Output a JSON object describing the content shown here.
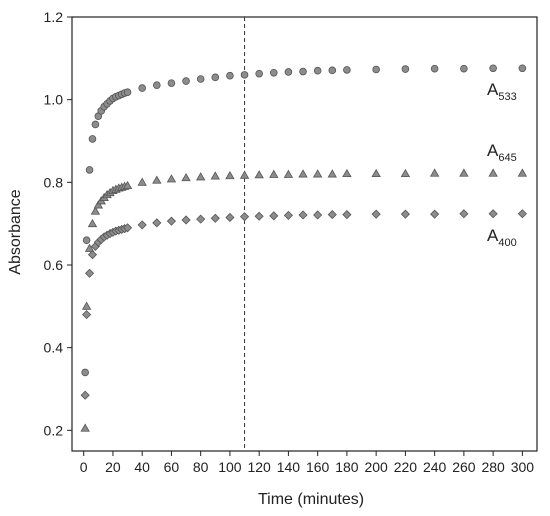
{
  "chart_data": {
    "type": "scatter",
    "xlabel": "Time (minutes)",
    "ylabel": "Absorbance",
    "xlim": [
      -8,
      310
    ],
    "ylim": [
      0.15,
      1.2
    ],
    "xticks": [
      0,
      20,
      40,
      60,
      80,
      100,
      120,
      140,
      160,
      180,
      200,
      220,
      240,
      260,
      280,
      300
    ],
    "yticks": [
      0.2,
      0.4,
      0.6,
      0.8,
      1.0,
      1.2
    ],
    "xtick_labels": [
      "0",
      "20",
      "40",
      "60",
      "80",
      "100",
      "120",
      "140",
      "160",
      "180",
      "200",
      "220",
      "240",
      "260",
      "280",
      "300"
    ],
    "ytick_labels": [
      "0.2",
      "0.4",
      "0.6",
      "0.8",
      "1.0",
      "1.2"
    ],
    "vline_x": 110,
    "grid": false,
    "marker_color": "#8c8c8c",
    "marker_edge": "#555555",
    "series": [
      {
        "name": "A533",
        "label_main": "A",
        "label_sub": "533",
        "marker": "circle",
        "x": [
          1,
          2,
          4,
          6,
          8,
          10,
          12,
          14,
          16,
          18,
          20,
          22,
          24,
          26,
          28,
          30,
          40,
          50,
          60,
          70,
          80,
          90,
          100,
          110,
          120,
          130,
          140,
          150,
          160,
          170,
          180,
          200,
          220,
          240,
          260,
          280,
          300
        ],
        "y": [
          0.34,
          0.66,
          0.83,
          0.905,
          0.94,
          0.96,
          0.973,
          0.983,
          0.99,
          0.997,
          1.003,
          1.007,
          1.01,
          1.013,
          1.016,
          1.018,
          1.028,
          1.035,
          1.04,
          1.045,
          1.05,
          1.054,
          1.058,
          1.06,
          1.063,
          1.065,
          1.067,
          1.068,
          1.07,
          1.071,
          1.072,
          1.073,
          1.074,
          1.075,
          1.075,
          1.076,
          1.076
        ]
      },
      {
        "name": "A645",
        "label_main": "A",
        "label_sub": "645",
        "marker": "triangle",
        "x": [
          1,
          2,
          4,
          6,
          8,
          10,
          12,
          14,
          16,
          18,
          20,
          22,
          24,
          26,
          28,
          30,
          40,
          50,
          60,
          70,
          80,
          90,
          100,
          110,
          120,
          130,
          140,
          150,
          160,
          170,
          180,
          200,
          220,
          240,
          260,
          280,
          300
        ],
        "y": [
          0.205,
          0.5,
          0.64,
          0.7,
          0.73,
          0.745,
          0.755,
          0.763,
          0.77,
          0.775,
          0.78,
          0.783,
          0.786,
          0.788,
          0.79,
          0.792,
          0.8,
          0.805,
          0.808,
          0.811,
          0.813,
          0.815,
          0.816,
          0.817,
          0.818,
          0.819,
          0.819,
          0.82,
          0.82,
          0.82,
          0.821,
          0.821,
          0.821,
          0.822,
          0.822,
          0.822,
          0.822
        ]
      },
      {
        "name": "A400",
        "label_main": "A",
        "label_sub": "400",
        "marker": "diamond",
        "x": [
          1,
          2,
          4,
          6,
          8,
          10,
          12,
          14,
          16,
          18,
          20,
          22,
          24,
          26,
          28,
          30,
          40,
          50,
          60,
          70,
          80,
          90,
          100,
          110,
          120,
          130,
          140,
          150,
          160,
          170,
          180,
          200,
          220,
          240,
          260,
          280,
          300
        ],
        "y": [
          0.285,
          0.48,
          0.58,
          0.625,
          0.645,
          0.655,
          0.662,
          0.668,
          0.672,
          0.676,
          0.679,
          0.682,
          0.684,
          0.686,
          0.688,
          0.69,
          0.697,
          0.702,
          0.706,
          0.709,
          0.711,
          0.713,
          0.715,
          0.717,
          0.718,
          0.719,
          0.72,
          0.721,
          0.721,
          0.722,
          0.722,
          0.723,
          0.723,
          0.723,
          0.724,
          0.724,
          0.724
        ]
      }
    ]
  }
}
